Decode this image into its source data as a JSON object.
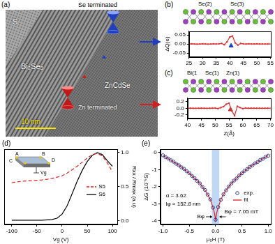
{
  "panel_a": {
    "title": "(a)",
    "texts": {
      "substrate": "S",
      "film": "Bi₂Se₃",
      "layer": "ZnCdSe",
      "scale_bar": "10 nm",
      "upper_interface": "Se terminated",
      "lower_interface": "Zn terminated"
    }
  },
  "chart_data": [
    {
      "type": "line",
      "title": "(b)",
      "ylabel": "ΔQ(e)",
      "annotations": [
        "Se(2)",
        "Se(3)"
      ],
      "x": [
        25,
        26,
        27,
        28,
        29,
        30,
        31,
        32,
        33,
        34,
        35,
        36,
        37,
        38,
        39,
        40,
        41,
        42,
        43,
        44,
        45,
        46,
        47,
        48,
        49,
        50,
        51,
        52,
        53,
        54,
        55
      ],
      "values": [
        0,
        0.001,
        0,
        -0.001,
        0,
        0.001,
        0,
        -0.001,
        0,
        0.001,
        0,
        0.001,
        0.003,
        -0.004,
        0.012,
        0.038,
        0.044,
        0.006,
        -0.006,
        0.003,
        0.001,
        0,
        0.001,
        0,
        0,
        0.001,
        0,
        0,
        0,
        0,
        0
      ],
      "color": "#e03030",
      "marker": "circle",
      "line_style": "solid",
      "interface_marker": {
        "x": 40.5,
        "y": -0.01,
        "color": "#1f3fbf",
        "marker": "triangle"
      },
      "xlim": [
        25,
        55
      ],
      "xticks": [
        25,
        30,
        35,
        40,
        45,
        50,
        55
      ],
      "ylim": [
        -0.07,
        0.07
      ],
      "yticks": [
        -0.05,
        {
          "value": 0,
          "label": "0.00"
        },
        0.05
      ],
      "grid": false
    },
    {
      "type": "line",
      "title": "(c)",
      "xlabel": "Z(Å)",
      "annotations": [
        "Bi(1",
        "Se(1)",
        "Zn(1)"
      ],
      "x": [
        40,
        41,
        42,
        43,
        44,
        45,
        46,
        47,
        48,
        49,
        50,
        51,
        52,
        53,
        54,
        55,
        56,
        57,
        58,
        59,
        60,
        61,
        62,
        63,
        64,
        65,
        66,
        67,
        68,
        69,
        70
      ],
      "values": [
        0,
        0.002,
        0,
        -0.002,
        0,
        0.002,
        0,
        -0.002,
        0,
        0.003,
        0.005,
        -0.01,
        0.02,
        0.05,
        0.12,
        0.15,
        -0.08,
        -0.22,
        0.06,
        0.02,
        -0.01,
        0.005,
        0,
        0.002,
        0,
        0,
        0.001,
        0,
        0,
        0,
        0
      ],
      "color": "#e03030",
      "marker": "circle",
      "line_style": "solid",
      "interface_marker": {
        "x": 55.5,
        "y": -0.04,
        "color": "#c0392b",
        "marker": "triangle"
      },
      "xlim": [
        40,
        70
      ],
      "xticks": [
        40,
        45,
        50,
        55,
        60,
        65,
        70
      ],
      "ylim": [
        -0.3,
        0.3
      ],
      "yticks": [
        -0.2,
        {
          "value": 0,
          "label": "0.0"
        },
        0.2
      ],
      "grid": false
    },
    {
      "type": "line",
      "title": "(d)",
      "xlabel": "Vg (V)",
      "ylabel": "Rxx / Rmax (a.u)",
      "x": [
        -100,
        -80,
        -60,
        -40,
        -20,
        -10,
        0,
        10,
        20,
        30,
        40,
        50,
        60,
        70,
        80,
        90,
        100
      ],
      "series": [
        {
          "name": "S5",
          "color": "#e02020",
          "line_style": "dashed",
          "values": [
            0.56,
            0.58,
            0.59,
            0.6,
            0.62,
            0.64,
            0.66,
            0.7,
            0.75,
            0.8,
            0.86,
            0.92,
            0.97,
            0.99,
            0.95,
            0.85,
            0.72
          ]
        },
        {
          "name": "S6",
          "color": "#000000",
          "line_style": "solid",
          "values": [
            0.01,
            0.01,
            0.01,
            0.01,
            0.02,
            0.04,
            0.1,
            0.22,
            0.4,
            0.58,
            0.74,
            0.87,
            0.96,
            1.0,
            0.97,
            0.88,
            0.8
          ]
        }
      ],
      "inset_labels": [
        "A",
        "B",
        "C",
        "D",
        "Vg"
      ],
      "xlim": [
        -115,
        110
      ],
      "xticks": [
        -100,
        -50,
        0,
        50,
        100
      ],
      "ylim": [
        -0.05,
        1.05
      ],
      "yticks": [
        {
          "value": 0,
          "label": "0.0"
        },
        0.5,
        {
          "value": 1,
          "label": "1.0"
        }
      ],
      "legend": "right",
      "grid": false
    },
    {
      "type": "scatter",
      "title": "(e)",
      "xlabel": "μ₀H (T)",
      "ylabel": "ΔG (10⁻⁵S)",
      "annotations": [
        "α = 3.62",
        "lφ = 152.8 nm",
        "Bφ = 7.05 mT"
      ],
      "shaded_range": [
        -0.07,
        0.07
      ],
      "shaded_label": "Bφ",
      "series": [
        {
          "name": "exp.",
          "type": "scatter",
          "marker": "circle",
          "color": "#1c2f8a",
          "x": [
            -1,
            -0.95,
            -0.9,
            -0.85,
            -0.8,
            -0.75,
            -0.7,
            -0.65,
            -0.6,
            -0.55,
            -0.5,
            -0.45,
            -0.4,
            -0.35,
            -0.3,
            -0.25,
            -0.2,
            -0.15,
            -0.1,
            -0.05,
            0,
            0.05,
            0.1,
            0.15,
            0.2,
            0.25,
            0.3,
            0.35,
            0.4,
            0.45,
            0.5,
            0.55,
            0.6,
            0.65,
            0.7,
            0.75,
            0.8,
            0.85,
            0.9,
            0.95,
            1
          ],
          "values": [
            -0.16,
            -0.27,
            -0.35,
            -0.45,
            -0.53,
            -0.65,
            -0.74,
            -0.86,
            -0.95,
            -1.09,
            -1.2,
            -1.36,
            -1.49,
            -1.66,
            -1.8,
            -2.01,
            -2.19,
            -2.46,
            -2.74,
            -3.22,
            -3.93,
            -3.19,
            -2.76,
            -2.44,
            -2.21,
            -1.99,
            -1.81,
            -1.64,
            -1.51,
            -1.34,
            -1.21,
            -1.07,
            -0.97,
            -0.84,
            -0.75,
            -0.63,
            -0.55,
            -0.43,
            -0.36,
            -0.25,
            -0.18
          ]
        },
        {
          "name": "fit",
          "type": "line",
          "line_style": "solid",
          "color": "#e02020",
          "x": [
            -1,
            -0.95,
            -0.9,
            -0.85,
            -0.8,
            -0.75,
            -0.7,
            -0.65,
            -0.6,
            -0.55,
            -0.5,
            -0.45,
            -0.4,
            -0.35,
            -0.3,
            -0.25,
            -0.2,
            -0.15,
            -0.1,
            -0.05,
            -0.02,
            0,
            0.02,
            0.05,
            0.1,
            0.15,
            0.2,
            0.25,
            0.3,
            0.35,
            0.4,
            0.45,
            0.5,
            0.55,
            0.6,
            0.65,
            0.7,
            0.75,
            0.8,
            0.85,
            0.9,
            0.95,
            1
          ],
          "values": [
            -0.17,
            -0.26,
            -0.35,
            -0.44,
            -0.54,
            -0.64,
            -0.74,
            -0.85,
            -0.96,
            -1.08,
            -1.2,
            -1.35,
            -1.5,
            -1.65,
            -1.8,
            -2.0,
            -2.2,
            -2.45,
            -2.75,
            -3.2,
            -3.55,
            -3.95,
            -3.55,
            -3.2,
            -2.75,
            -2.45,
            -2.2,
            -2.0,
            -1.8,
            -1.65,
            -1.5,
            -1.35,
            -1.2,
            -1.08,
            -0.96,
            -0.85,
            -0.74,
            -0.64,
            -0.54,
            -0.44,
            -0.35,
            -0.26,
            -0.17
          ]
        }
      ],
      "xlim": [
        -1.05,
        1.05
      ],
      "xticks": [
        {
          "value": -1,
          "label": "-1.0"
        },
        -0.5,
        {
          "value": 0,
          "label": "0.0"
        },
        0.5,
        {
          "value": 1,
          "label": "1.0"
        }
      ],
      "ylim": [
        -4.2,
        0.2
      ],
      "yticks": [
        0,
        -1,
        -2,
        -3,
        -4
      ],
      "legend": "lower right",
      "grid": false
    }
  ]
}
